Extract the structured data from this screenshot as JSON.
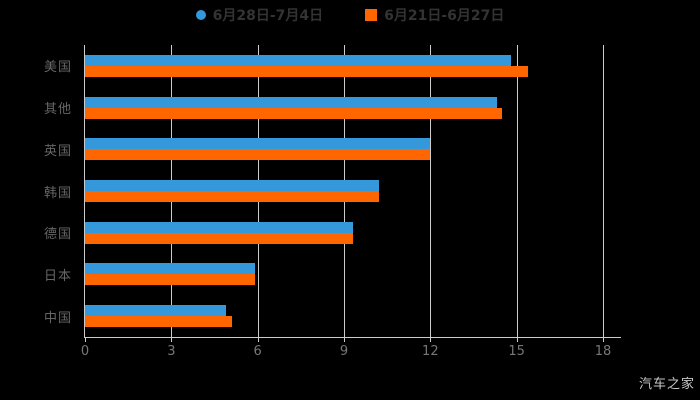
{
  "chart_data": {
    "type": "bar",
    "orientation": "horizontal",
    "title": "",
    "categories": [
      "美国",
      "其他",
      "英国",
      "韩国",
      "德国",
      "日本",
      "中国"
    ],
    "series": [
      {
        "name": "6月28日-7月4日",
        "color": "#3498db",
        "marker": "circle",
        "values": [
          14.8,
          14.3,
          12.0,
          10.2,
          9.3,
          5.9,
          4.9
        ]
      },
      {
        "name": "6月21日-6月27日",
        "color": "#ff6600",
        "marker": "square",
        "values": [
          15.4,
          14.5,
          12.0,
          10.2,
          9.3,
          5.9,
          5.1
        ]
      }
    ],
    "xlim": [
      0,
      18
    ],
    "x_ticks": [
      "0",
      "3",
      "6",
      "9",
      "12",
      "15",
      "18"
    ],
    "grid": "vertical-gridlines",
    "legend_position": "top-center"
  },
  "watermark": "汽车之家",
  "colors": {
    "background": "#000000",
    "series1": "#3498db",
    "series2": "#ff6600",
    "gridline": "#cccccc",
    "axis_line": "#cccccc",
    "tick_label": "#777777",
    "category_label": "#666666",
    "legend_text": "#333333",
    "watermark": "#c9c9c9"
  }
}
